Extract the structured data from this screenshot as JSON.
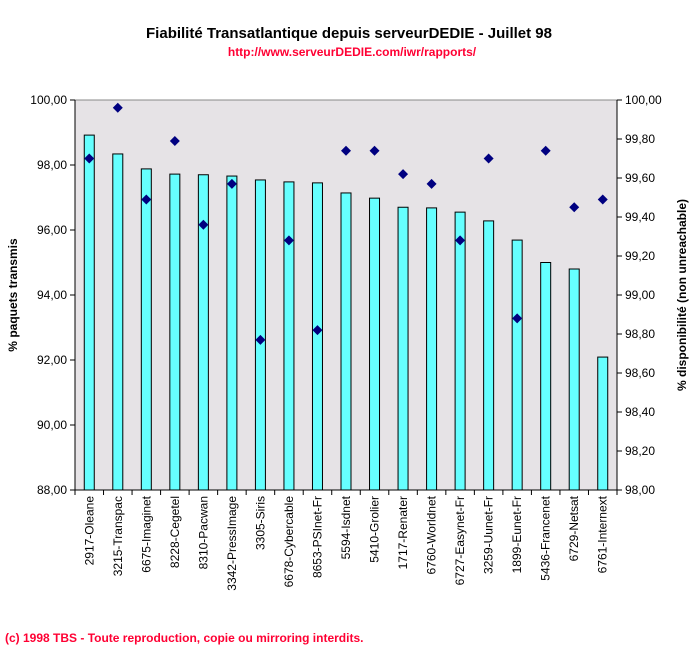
{
  "chart_data": {
    "type": "bar",
    "title": "Fiabilité Transatlantique depuis serveurDEDIE - Juillet 98",
    "subtitle": "http://www.serveurDEDIE.com/iwr/rapports/",
    "ylabel": "% paquets transmis",
    "y2label": "% disponibilité (non unreachable)",
    "ylim": [
      88,
      100
    ],
    "y2lim": [
      98,
      100
    ],
    "yticks": [
      "88,00",
      "90,00",
      "92,00",
      "94,00",
      "96,00",
      "98,00",
      "100,00"
    ],
    "y2ticks": [
      "98,00",
      "98,20",
      "98,40",
      "98,60",
      "98,80",
      "99,00",
      "99,20",
      "99,40",
      "99,60",
      "99,80",
      "100,00"
    ],
    "categories": [
      "2917-Oleane",
      "3215-Transpac",
      "6675-Imaginet",
      "8228-Cegetel",
      "8310-Pacwan",
      "3342-PressImage",
      "3305-Siris",
      "6678-Cybercable",
      "8653-PSInet-Fr",
      "5594-Isdnet",
      "5410-Grolier",
      "1717-Renater",
      "6760-Worldnet",
      "6727-Easynet-Fr",
      "3259-Uunet-Fr",
      "1899-Eunet-Fr",
      "5436-Francenet",
      "6729-Netsat",
      "6761-Internext"
    ],
    "series": [
      {
        "name": "% paquets transmis",
        "axis": "left",
        "kind": "bar",
        "color": "#66ffff",
        "values": [
          98.92,
          98.34,
          97.88,
          97.72,
          97.7,
          97.66,
          97.54,
          97.48,
          97.45,
          97.14,
          96.98,
          96.7,
          96.68,
          96.55,
          96.28,
          95.69,
          95.0,
          94.8,
          92.09
        ]
      },
      {
        "name": "% disponibilité",
        "axis": "right",
        "kind": "scatter",
        "color": "#000080",
        "values": [
          99.7,
          99.96,
          99.49,
          99.79,
          99.36,
          99.57,
          98.77,
          99.28,
          98.82,
          99.74,
          99.74,
          99.62,
          99.57,
          99.28,
          99.7,
          98.88,
          99.74,
          99.45,
          99.49
        ]
      }
    ],
    "grid": false,
    "plot_background": "#e6e3e6"
  },
  "footer": "(c) 1998 TBS - Toute reproduction, copie ou mirroring interdits."
}
